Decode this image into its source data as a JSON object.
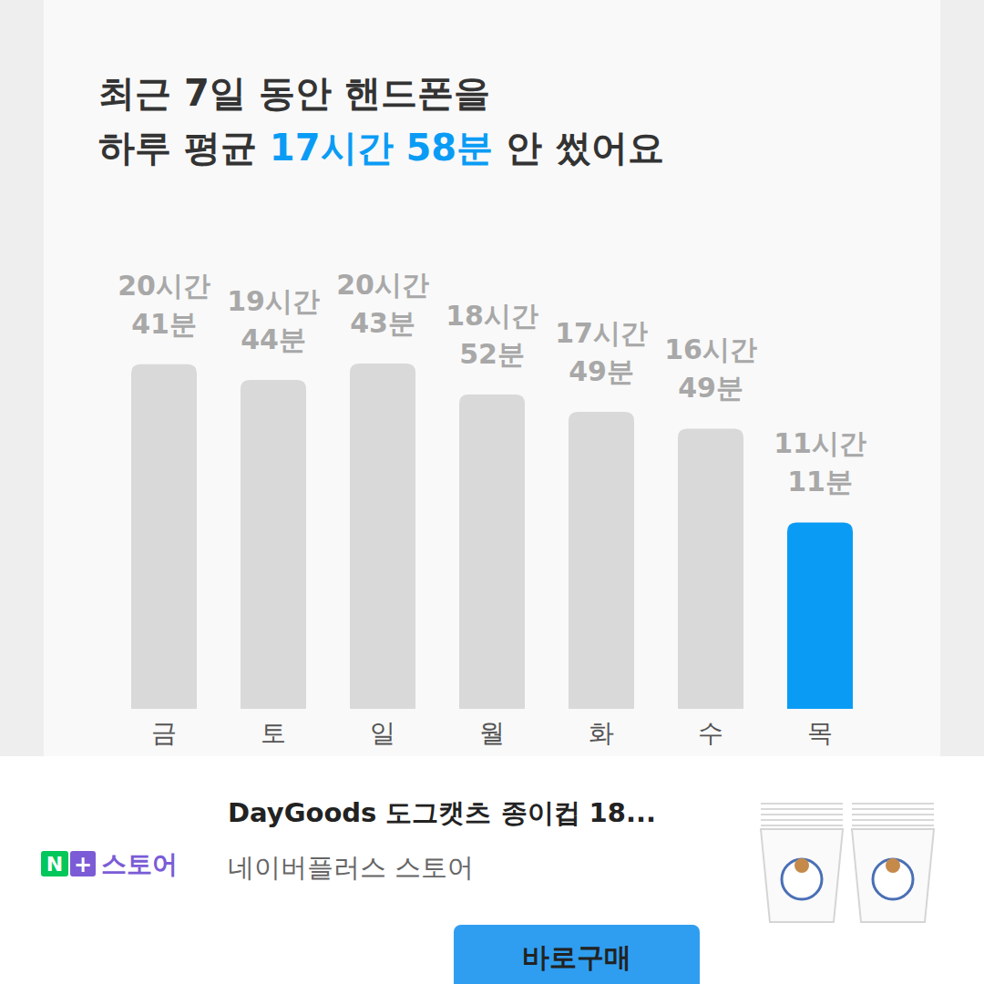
{
  "chart_data": {
    "type": "bar",
    "title": [
      "최근 7일 동안 핸드폰을",
      "하루 평균",
      "17시간 58분",
      "안 썼어요"
    ],
    "categories": [
      "금",
      "토",
      "일",
      "월",
      "화",
      "수",
      "목"
    ],
    "values": [
      1241,
      1184,
      1243,
      1132,
      1069,
      1009,
      671
    ],
    "value_labels": [
      "20시간 41분",
      "19시간 44분",
      "20시간 43분",
      "18시간 52분",
      "17시간 49분",
      "16시간 49분",
      "11시간 11분"
    ],
    "colors": [
      "#d9d9d9",
      "#d9d9d9",
      "#d9d9d9",
      "#d9d9d9",
      "#d9d9d9",
      "#d9d9d9",
      "#0a9cf5"
    ],
    "ylim": [
      0,
      1440
    ],
    "data_labels": true,
    "tick_labels": "x"
  },
  "ad": {
    "store_logo": {
      "n": "N",
      "plus": "+",
      "text": "스토어"
    },
    "product": "DayGoods 도그캣츠 종이컵 18...",
    "seller": "네이버플러스 스토어",
    "button": "바로구매"
  }
}
